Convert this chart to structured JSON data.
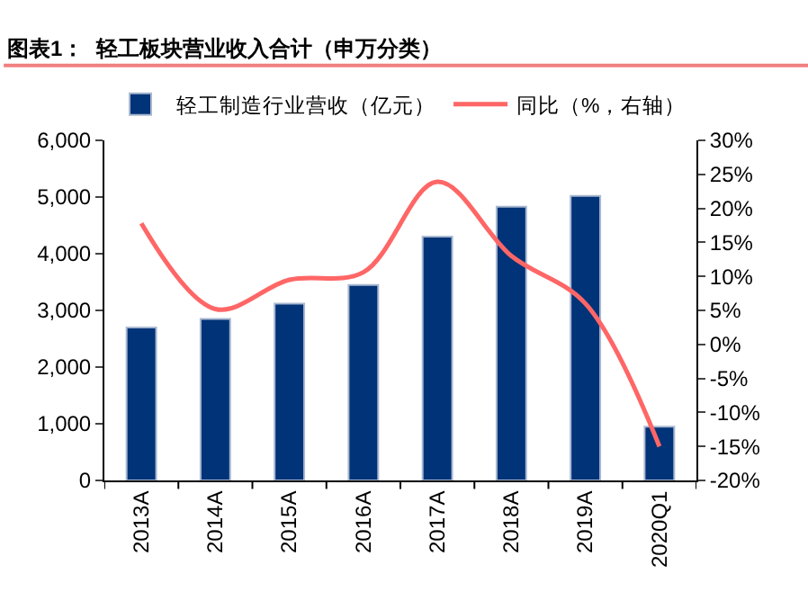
{
  "chart_data": {
    "type": "bar",
    "title": "图表1：  轻工板块营业收入合计（申万分类）",
    "categories": [
      "2013A",
      "2014A",
      "2015A",
      "2016A",
      "2017A",
      "2018A",
      "2019A",
      "2020Q1"
    ],
    "series": [
      {
        "name": "轻工制造行业营收（亿元）",
        "color": "#003378",
        "values": [
          2700,
          2850,
          3120,
          3450,
          4300,
          4830,
          5020,
          950
        ]
      },
      {
        "name": "同比（%，右轴）",
        "color": "#ff6666",
        "type": "line",
        "axis": "y2",
        "values": [
          17.8,
          5.2,
          9.5,
          10.6,
          23.9,
          13,
          6,
          -15
        ]
      }
    ],
    "ylim": [
      0,
      6000
    ],
    "yticks": [
      {
        "value": 0,
        "label": "0"
      },
      {
        "value": 1000,
        "label": "1,000"
      },
      {
        "value": 2000,
        "label": "2,000"
      },
      {
        "value": 3000,
        "label": "3,000"
      },
      {
        "value": 4000,
        "label": "4,000"
      },
      {
        "value": 5000,
        "label": "5,000"
      },
      {
        "value": 6000,
        "label": "6,000"
      }
    ],
    "y2lim": [
      -20,
      30
    ],
    "y2ticks": [
      {
        "value": -20,
        "label": "-20%"
      },
      {
        "value": -15,
        "label": "-15%"
      },
      {
        "value": -10,
        "label": "-10%"
      },
      {
        "value": -5,
        "label": "-5%"
      },
      {
        "value": 0,
        "label": "0%"
      },
      {
        "value": 5,
        "label": "5%"
      },
      {
        "value": 10,
        "label": "10%"
      },
      {
        "value": 15,
        "label": "15%"
      },
      {
        "value": 20,
        "label": "20%"
      },
      {
        "value": 25,
        "label": "25%"
      },
      {
        "value": 30,
        "label": "30%"
      }
    ],
    "legend": "top"
  }
}
